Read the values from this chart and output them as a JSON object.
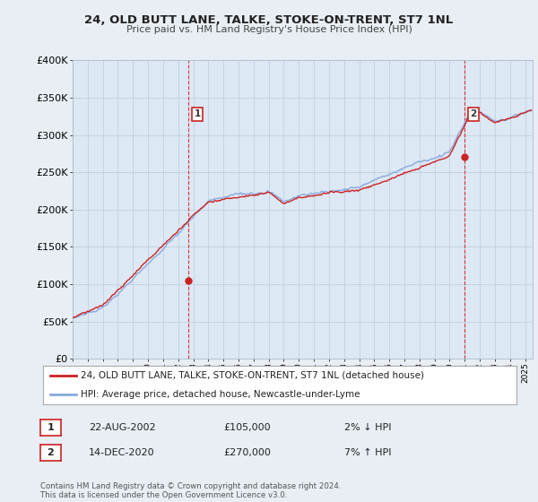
{
  "title": "24, OLD BUTT LANE, TALKE, STOKE-ON-TRENT, ST7 1NL",
  "subtitle": "Price paid vs. HM Land Registry's House Price Index (HPI)",
  "x_start": 1995.0,
  "x_end": 2025.5,
  "y_min": 0,
  "y_max": 400000,
  "yticks": [
    0,
    50000,
    100000,
    150000,
    200000,
    250000,
    300000,
    350000,
    400000
  ],
  "ytick_labels": [
    "£0",
    "£50K",
    "£100K",
    "£150K",
    "£200K",
    "£250K",
    "£300K",
    "£350K",
    "£400K"
  ],
  "xticks": [
    1995,
    1996,
    1997,
    1998,
    1999,
    2000,
    2001,
    2002,
    2003,
    2004,
    2005,
    2006,
    2007,
    2008,
    2009,
    2010,
    2011,
    2012,
    2013,
    2014,
    2015,
    2016,
    2017,
    2018,
    2019,
    2020,
    2021,
    2022,
    2023,
    2024,
    2025
  ],
  "sale1_x": 2002.645,
  "sale1_y": 105000,
  "sale1_label": "1",
  "sale2_x": 2020.958,
  "sale2_y": 270000,
  "sale2_label": "2",
  "vline_color": "#dd2222",
  "price_line_color": "#cc2222",
  "hpi_line_color": "#88aadd",
  "legend_label1": "24, OLD BUTT LANE, TALKE, STOKE-ON-TRENT, ST7 1NL (detached house)",
  "legend_label2": "HPI: Average price, detached house, Newcastle-under-Lyme",
  "annotation1_date": "22-AUG-2002",
  "annotation1_price": "£105,000",
  "annotation1_hpi": "2% ↓ HPI",
  "annotation2_date": "14-DEC-2020",
  "annotation2_price": "£270,000",
  "annotation2_hpi": "7% ↑ HPI",
  "footer": "Contains HM Land Registry data © Crown copyright and database right 2024.\nThis data is licensed under the Open Government Licence v3.0.",
  "bg_color": "#e8eef4",
  "plot_bg_color": "#dce8f4",
  "grid_color": "#bbccdd"
}
